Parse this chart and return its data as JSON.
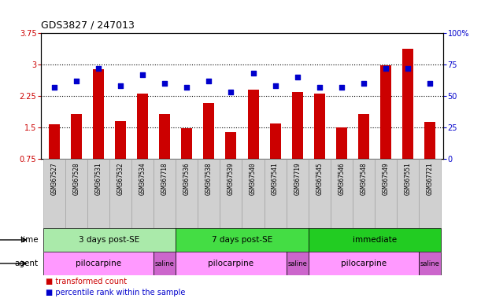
{
  "title": "GDS3827 / 247013",
  "samples": [
    "GSM367527",
    "GSM367528",
    "GSM367531",
    "GSM367532",
    "GSM367534",
    "GSM367718",
    "GSM367536",
    "GSM367538",
    "GSM367539",
    "GSM367540",
    "GSM367541",
    "GSM367719",
    "GSM367545",
    "GSM367546",
    "GSM367548",
    "GSM367549",
    "GSM367551",
    "GSM367721"
  ],
  "bar_values": [
    1.57,
    1.82,
    2.88,
    1.65,
    2.3,
    1.82,
    1.49,
    2.08,
    1.38,
    2.4,
    1.6,
    2.35,
    2.3,
    1.5,
    1.82,
    2.98,
    3.37,
    1.63
  ],
  "dot_values": [
    57,
    62,
    72,
    58,
    67,
    60,
    57,
    62,
    53,
    68,
    58,
    65,
    57,
    57,
    60,
    72,
    72,
    60
  ],
  "bar_color": "#cc0000",
  "dot_color": "#0000cc",
  "ylim_left": [
    0.75,
    3.75
  ],
  "ylim_right": [
    0,
    100
  ],
  "yticks_left": [
    0.75,
    1.5,
    2.25,
    3.0,
    3.75
  ],
  "ytick_labels_left": [
    "0.75",
    "1.5",
    "2.25",
    "3",
    "3.75"
  ],
  "yticks_right": [
    0,
    25,
    50,
    75,
    100
  ],
  "ytick_labels_right": [
    "0",
    "25",
    "50",
    "75",
    "100%"
  ],
  "hlines": [
    1.5,
    2.25,
    3.0
  ],
  "time_groups": [
    {
      "label": "3 days post-SE",
      "start": 0,
      "end": 5,
      "color": "#aaeaaa"
    },
    {
      "label": "7 days post-SE",
      "start": 6,
      "end": 11,
      "color": "#44dd44"
    },
    {
      "label": "immediate",
      "start": 12,
      "end": 17,
      "color": "#22cc22"
    }
  ],
  "agent_groups": [
    {
      "label": "pilocarpine",
      "start": 0,
      "end": 4,
      "color": "#ff99ff"
    },
    {
      "label": "saline",
      "start": 5,
      "end": 5,
      "color": "#cc66cc"
    },
    {
      "label": "pilocarpine",
      "start": 6,
      "end": 10,
      "color": "#ff99ff"
    },
    {
      "label": "saline",
      "start": 11,
      "end": 11,
      "color": "#cc66cc"
    },
    {
      "label": "pilocarpine",
      "start": 12,
      "end": 16,
      "color": "#ff99ff"
    },
    {
      "label": "saline",
      "start": 17,
      "end": 17,
      "color": "#cc66cc"
    }
  ],
  "legend_items": [
    {
      "label": "transformed count",
      "color": "#cc0000"
    },
    {
      "label": "percentile rank within the sample",
      "color": "#0000cc"
    }
  ],
  "bg_color": "#ffffff",
  "tick_label_color_left": "#cc0000",
  "tick_label_color_right": "#0000cc",
  "bar_width": 0.5,
  "dot_size": 22
}
